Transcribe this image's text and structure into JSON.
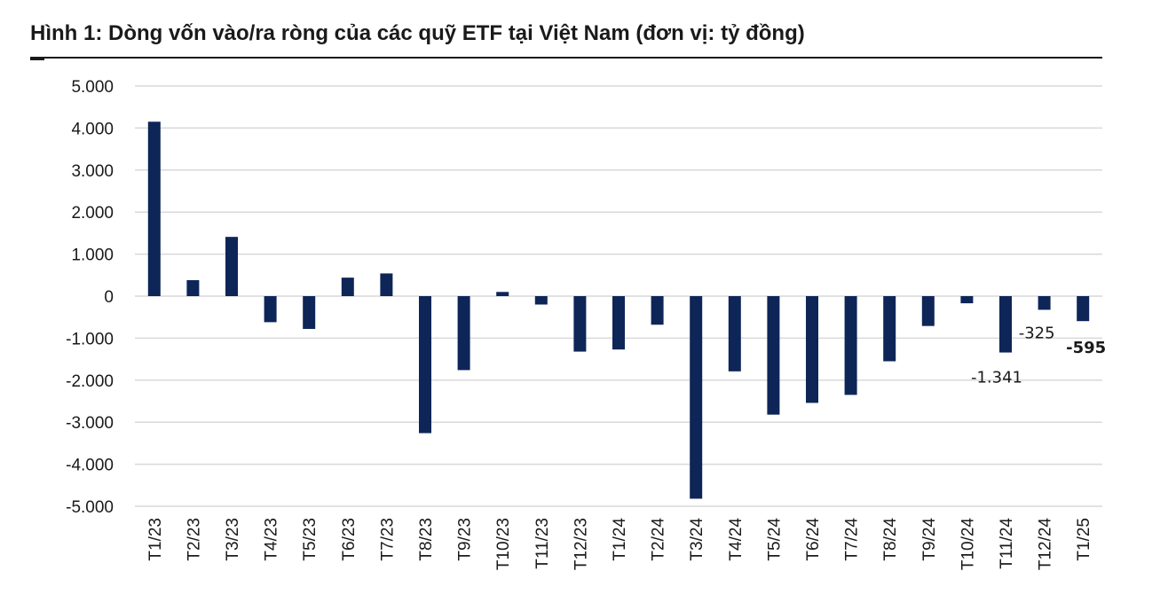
{
  "title": "Hình 1: Dòng vốn vào/ra ròng của các quỹ ETF tại Việt Nam (đơn vị: tỷ đồng)",
  "colors": {
    "bar": "#0e2557",
    "grid": "#d9d9d9",
    "text": "#1a1a1a"
  },
  "chart_data": {
    "type": "bar",
    "title": "Hình 1: Dòng vốn vào/ra ròng của các quỹ ETF tại Việt Nam (đơn vị: tỷ đồng)",
    "xlabel": "",
    "ylabel": "",
    "ylim": [
      -5000,
      5000
    ],
    "yticks": [
      5000,
      4000,
      3000,
      2000,
      1000,
      0,
      -1000,
      -2000,
      -3000,
      -4000,
      -5000
    ],
    "ytick_labels": [
      "5.000",
      "4.000",
      "3.000",
      "2.000",
      "1.000",
      "0",
      "-1.000",
      "-2.000",
      "-3.000",
      "-4.000",
      "-5.000"
    ],
    "grid": true,
    "legend": "none",
    "categories": [
      "T1/23",
      "T2/23",
      "T3/23",
      "T4/23",
      "T5/23",
      "T6/23",
      "T7/23",
      "T8/23",
      "T9/23",
      "T10/23",
      "T11/23",
      "T12/23",
      "T1/24",
      "T2/24",
      "T3/24",
      "T4/24",
      "T5/24",
      "T6/24",
      "T7/24",
      "T8/24",
      "T9/24",
      "T10/24",
      "T11/24",
      "T12/24",
      "T1/25"
    ],
    "values": [
      4150,
      380,
      1410,
      -620,
      -780,
      440,
      540,
      -3260,
      -1760,
      100,
      -200,
      -1320,
      -1270,
      -680,
      -4820,
      -1790,
      -2820,
      -2540,
      -2350,
      -1550,
      -710,
      -170,
      -1341,
      -325,
      -595
    ],
    "data_labels": [
      {
        "category": "T11/24",
        "text": "-1.341",
        "bold": false
      },
      {
        "category": "T12/24",
        "text": "-325",
        "bold": false
      },
      {
        "category": "T1/25",
        "text": "-595",
        "bold": true
      }
    ]
  }
}
